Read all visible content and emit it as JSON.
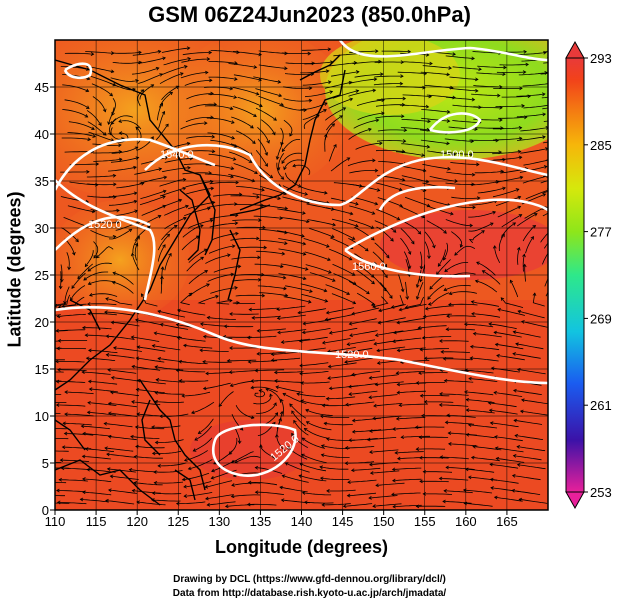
{
  "title": "GSM 06Z24Jun2023 (850.0hPa)",
  "axes": {
    "xlabel": "Longitude (degrees)",
    "ylabel": "Latitude  (degrees)",
    "x_ticks": [
      "110",
      "115",
      "120",
      "125",
      "130",
      "135",
      "140",
      "145",
      "150",
      "155",
      "160",
      "165"
    ],
    "y_ticks": [
      "0",
      "5",
      "10",
      "15",
      "20",
      "25",
      "30",
      "35",
      "40",
      "45"
    ],
    "x_range": [
      110,
      170
    ],
    "y_range": [
      0,
      50
    ]
  },
  "colorbar": {
    "tick_labels": [
      "293",
      "285",
      "277",
      "269",
      "261",
      "253"
    ],
    "range": [
      253,
      293
    ],
    "colors": [
      "#e8209a",
      "#3b12a8",
      "#1a5cf0",
      "#12c4e0",
      "#2ee88a",
      "#8ee61a",
      "#d6e80c",
      "#f6b60a",
      "#f47a12",
      "#f2421a",
      "#e83a3a"
    ]
  },
  "contours": [
    {
      "label": "1520.0"
    },
    {
      "label": "1540.0"
    },
    {
      "label": "1560.0"
    },
    {
      "label": "1500.0"
    }
  ],
  "credits": {
    "line1": "Drawing by DCL (https://www.gfd-dennou.org/library/dcl/)",
    "line2": "Data from http://database.rish.kyoto-u.ac.jp/arch/jmadata/"
  }
}
